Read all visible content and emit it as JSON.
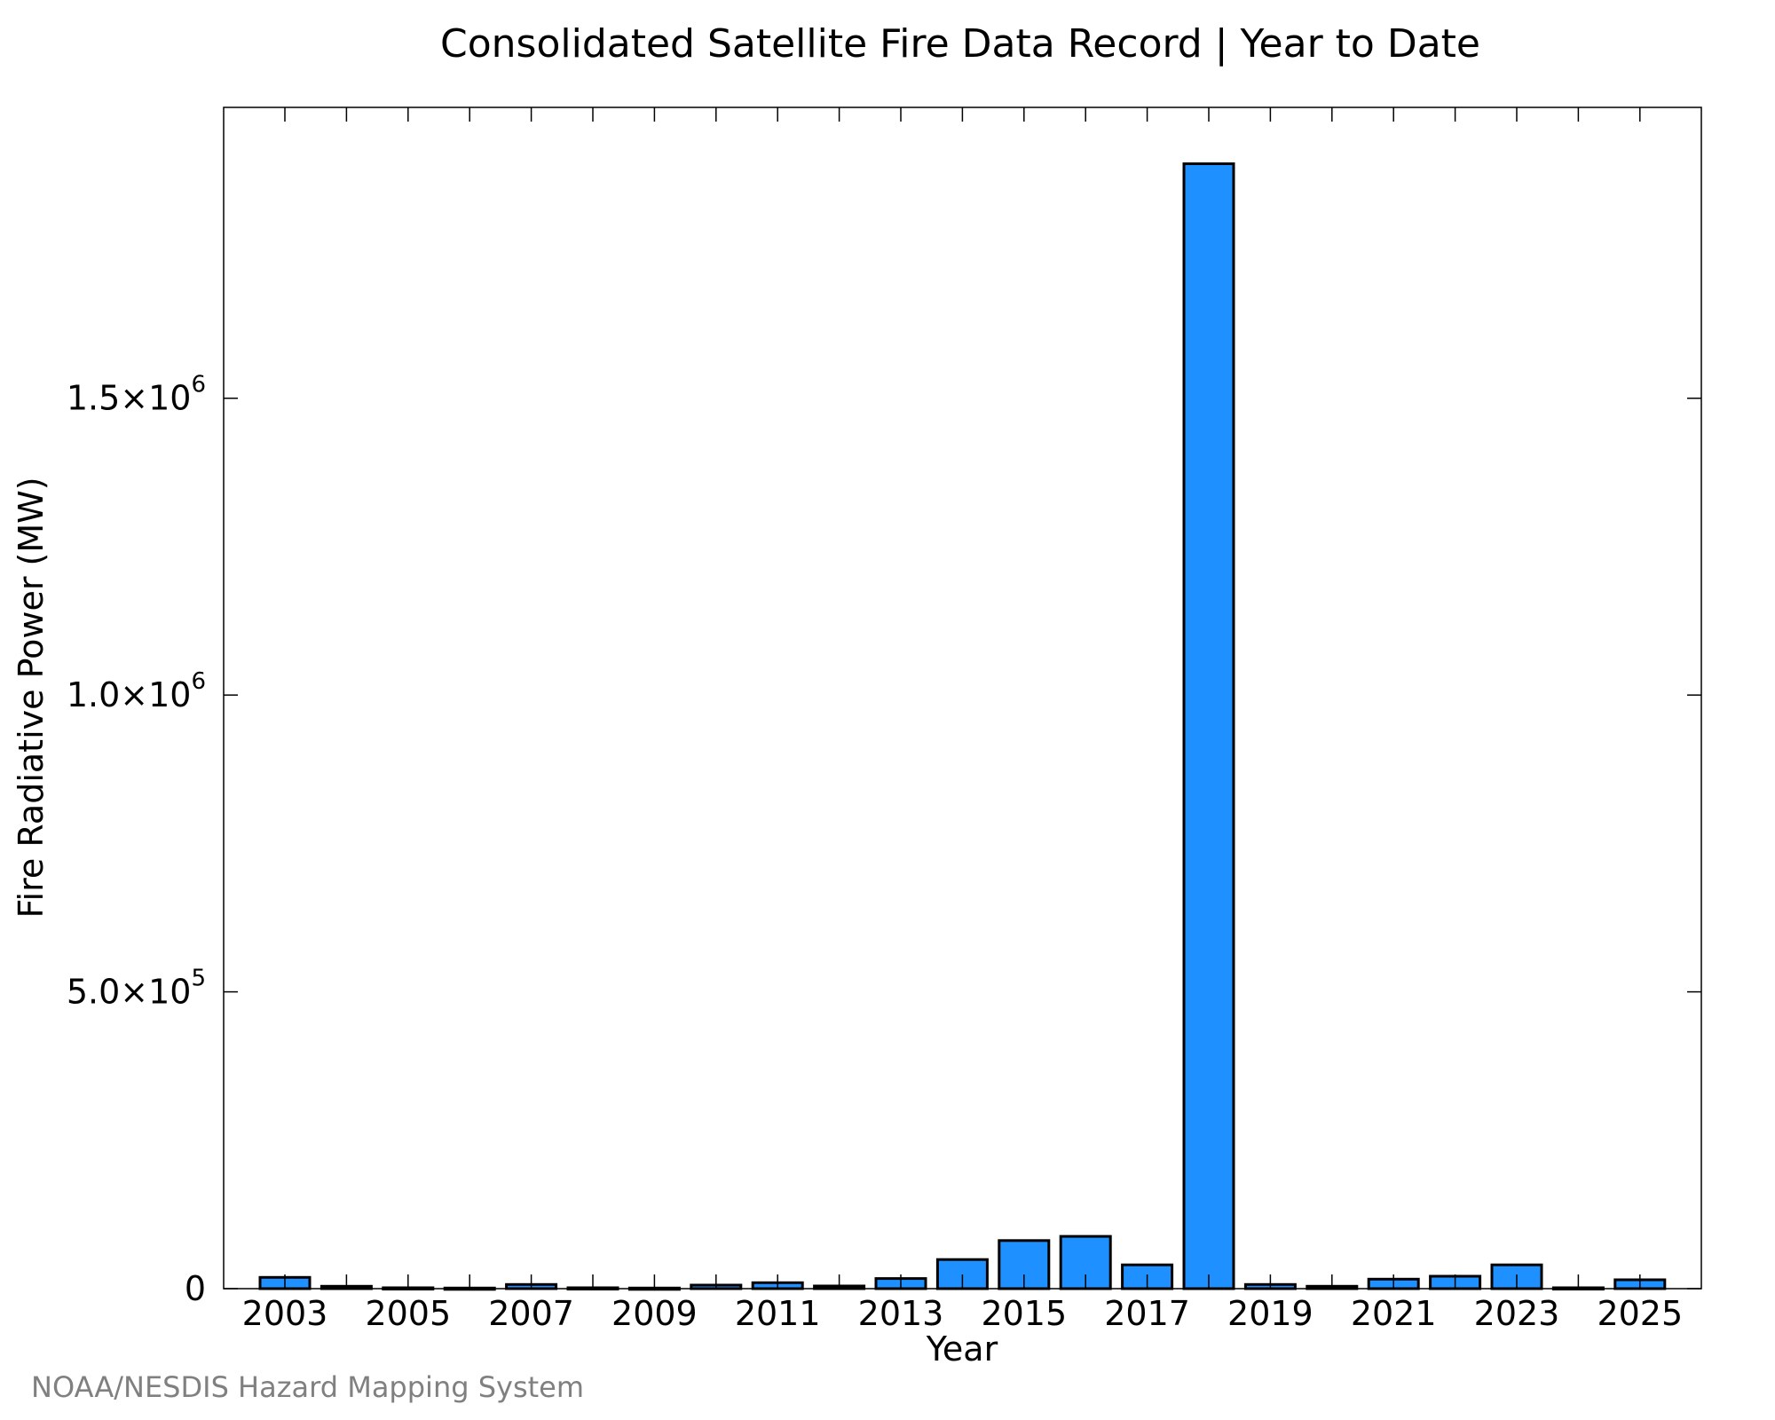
{
  "chart_data": {
    "type": "bar",
    "title": "Consolidated Satellite Fire Data Record | Year to Date",
    "xlabel": "Year",
    "ylabel": "Fire Radiative Power (MW)",
    "categories": [
      "2003",
      "2004",
      "2005",
      "2006",
      "2007",
      "2008",
      "2009",
      "2010",
      "2011",
      "2012",
      "2013",
      "2014",
      "2015",
      "2016",
      "2017",
      "2018",
      "2019",
      "2020",
      "2021",
      "2022",
      "2023",
      "2024",
      "2025"
    ],
    "values": [
      19000,
      4000,
      1500,
      1000,
      7000,
      1500,
      1000,
      6000,
      10000,
      4500,
      17000,
      49000,
      81000,
      88000,
      40000,
      1895000,
      7000,
      4000,
      16000,
      21000,
      40000,
      1500,
      15000
    ],
    "xtick_labels": [
      "2003",
      "2005",
      "2007",
      "2009",
      "2011",
      "2013",
      "2015",
      "2017",
      "2019",
      "2021",
      "2023",
      "2025"
    ],
    "yticks": [
      {
        "value": 0,
        "mantissa": "0",
        "exponent": ""
      },
      {
        "value": 500000,
        "mantissa": "5.0×10",
        "exponent": "5"
      },
      {
        "value": 1000000,
        "mantissa": "1.0×10",
        "exponent": "6"
      },
      {
        "value": 1500000,
        "mantissa": "1.5×10",
        "exponent": "6"
      }
    ],
    "ylim": [
      0,
      1990000
    ],
    "grid": false,
    "bar_color": "#1e90ff",
    "bar_edge_color": "#000000"
  },
  "credit": "NOAA/NESDIS Hazard Mapping System"
}
